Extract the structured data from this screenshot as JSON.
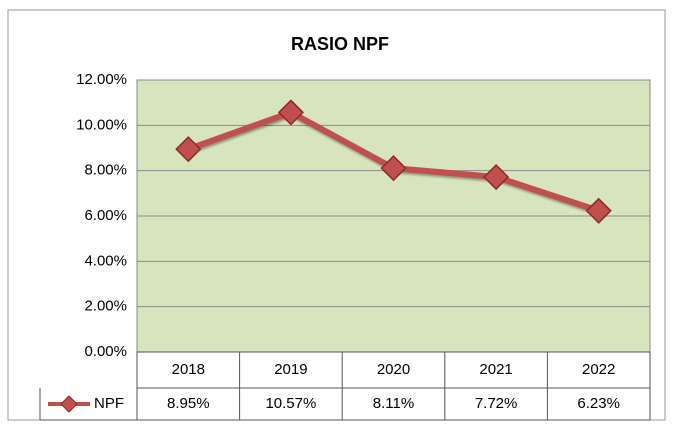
{
  "chart_data": {
    "type": "line",
    "title": "RASIO NPF",
    "categories": [
      "2018",
      "2019",
      "2020",
      "2021",
      "2022"
    ],
    "series": [
      {
        "name": "NPF",
        "color": "#c0504d",
        "values": [
          8.95,
          10.57,
          8.11,
          7.72,
          6.23
        ],
        "value_labels": [
          "8.95%",
          "10.57%",
          "8.11%",
          "7.72%",
          "6.23%"
        ]
      }
    ],
    "ylim": [
      0,
      12
    ],
    "yticks": [
      {
        "value": 0,
        "label": "0.00%"
      },
      {
        "value": 2,
        "label": "2.00%"
      },
      {
        "value": 4,
        "label": "4.00%"
      },
      {
        "value": 6,
        "label": "6.00%"
      },
      {
        "value": 8,
        "label": "8.00%"
      },
      {
        "value": 10,
        "label": "10.00%"
      },
      {
        "value": 12,
        "label": "12.00%"
      }
    ],
    "grid": true,
    "plot_background": "#d7e4bd"
  }
}
